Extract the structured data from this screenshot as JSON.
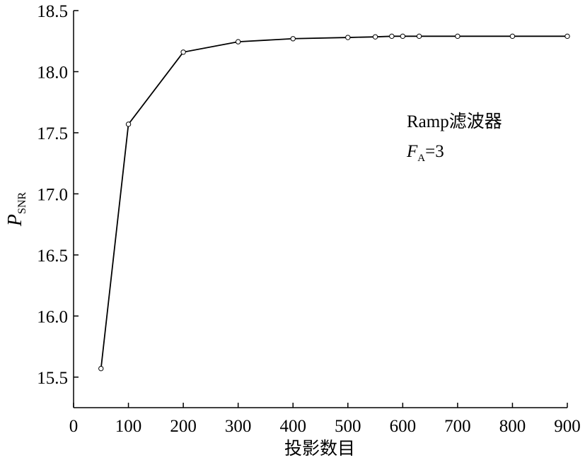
{
  "chart_data": {
    "type": "line",
    "x_label": "投影数目",
    "y_label": {
      "main": "P",
      "sub": "SNR"
    },
    "annotation": {
      "line1": "Ramp滤波器",
      "line2": {
        "main": "F",
        "sub": "A",
        "rest": "=3"
      }
    },
    "x": [
      50,
      100,
      200,
      300,
      400,
      500,
      550,
      580,
      600,
      630,
      700,
      800,
      900
    ],
    "series": [
      {
        "color": "#000000",
        "values": [
          15.57,
          17.57,
          18.16,
          18.245,
          18.27,
          18.28,
          18.285,
          18.29,
          18.29,
          18.29,
          18.29,
          18.29,
          18.29
        ]
      }
    ],
    "xlim": [
      0,
      900
    ],
    "xticks": [
      0,
      100,
      200,
      300,
      400,
      500,
      600,
      700,
      800,
      900
    ],
    "ylim": [
      15.25,
      18.5
    ],
    "yticks": [
      15.5,
      {
        "value": 16,
        "label": "16.0"
      },
      16.5,
      {
        "value": 17,
        "label": "17.0"
      },
      17.5,
      {
        "value": 18,
        "label": "18.0"
      },
      18.5
    ],
    "grid": false,
    "marker": "open-circle"
  }
}
